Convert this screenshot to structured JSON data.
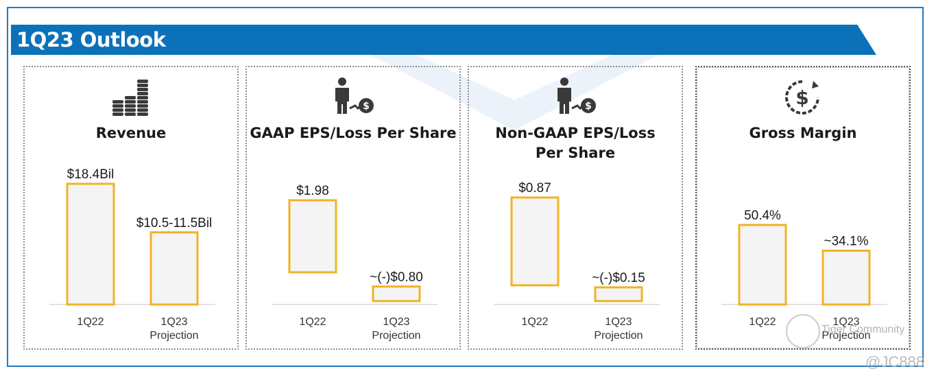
{
  "header": {
    "title": "1Q23 Outlook"
  },
  "colors": {
    "accent": "#0b72b9",
    "bar_border": "#f0b323",
    "bar_fill": "#f4f4f4"
  },
  "panels": [
    {
      "title": "Revenue",
      "icon": "coin-stacks-icon"
    },
    {
      "title": "GAAP EPS/Loss Per Share",
      "icon": "person-dollar-icon"
    },
    {
      "title": "Non-GAAP EPS/Loss Per Share",
      "icon": "person-dollar-icon"
    },
    {
      "title": "Gross Margin",
      "icon": "dollar-cycle-icon"
    }
  ],
  "chart_data": [
    {
      "type": "bar",
      "title": "Revenue",
      "categories": [
        "1Q22",
        "1Q23 Projection"
      ],
      "values": [
        18.4,
        11.0
      ],
      "data_labels": [
        "$18.4Bil",
        "$10.5-11.5Bil"
      ]
    },
    {
      "type": "bar",
      "title": "GAAP EPS/Loss Per Share",
      "categories": [
        "1Q22",
        "1Q23 Projection"
      ],
      "values": [
        1.98,
        -0.8
      ],
      "data_labels": [
        "$1.98",
        "~(-)$0.80"
      ]
    },
    {
      "type": "bar",
      "title": "Non-GAAP EPS/Loss Per Share",
      "categories": [
        "1Q22",
        "1Q23 Projection"
      ],
      "values": [
        0.87,
        -0.15
      ],
      "data_labels": [
        "$0.87",
        "~(-)$0.15"
      ]
    },
    {
      "type": "bar",
      "title": "Gross Margin",
      "categories": [
        "1Q22",
        "1Q23 Projection"
      ],
      "values": [
        50.4,
        34.1
      ],
      "data_labels": [
        "50.4%",
        "~34.1%"
      ]
    }
  ],
  "watermark": {
    "brand": "Tiger Community",
    "user": "@JC888"
  }
}
